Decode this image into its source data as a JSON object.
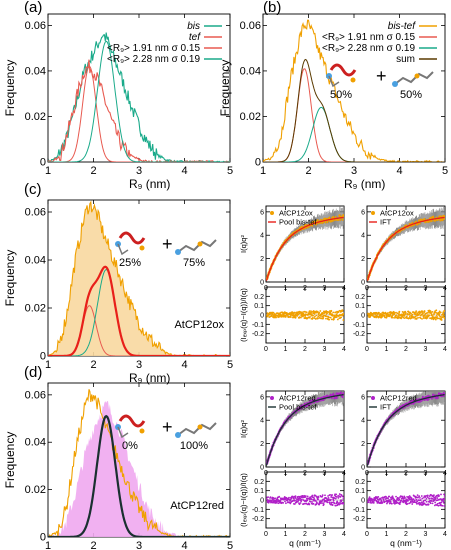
{
  "figure": {
    "panel_labels": [
      "(a)",
      "(b)",
      "(c)",
      "(d)"
    ]
  },
  "colors": {
    "bis": "#1aaa8a",
    "tef": "#e85a50",
    "sum": "#3a2a00",
    "bistef": "#f0a000",
    "ox": "#f0a000",
    "ox_fill": "#f8d8a0",
    "ox_fit": "#e8201a",
    "red": "#b020c8",
    "red_fill": "#f0a8f0",
    "red_fit": "#1a3030",
    "sum_b": "#5a3a00"
  },
  "chart_data": [
    {
      "id": "a",
      "type": "line",
      "xlabel": "R₉ (nm)",
      "ylabel": "Frequency",
      "xlim": [
        1,
        5
      ],
      "ylim": [
        0,
        0.065
      ],
      "xticks": [
        1,
        2,
        3,
        4,
        5
      ],
      "yticks": [
        0,
        0.02,
        0.04,
        0.06
      ],
      "ytick_labels": [
        "0",
        "0.02",
        "0.04",
        "0.06"
      ],
      "legend": [
        {
          "label": "bis",
          "italic": true,
          "color": "bis"
        },
        {
          "label": "tef",
          "italic": true,
          "color": "tef"
        },
        {
          "label": "<R₉> 1.91 nm σ 0.15",
          "color": "tef"
        },
        {
          "label": "<R₉> 2.28 nm σ 0.19",
          "color": "bis"
        }
      ],
      "series": [
        {
          "name": "bis",
          "color": "bis",
          "noisy": true,
          "x": [
            1.2,
            1.4,
            1.6,
            1.8,
            2.0,
            2.1,
            2.2,
            2.3,
            2.4,
            2.6,
            2.8,
            3.0,
            3.2,
            3.4,
            3.6
          ],
          "y": [
            0.002,
            0.01,
            0.024,
            0.04,
            0.048,
            0.052,
            0.056,
            0.054,
            0.048,
            0.038,
            0.026,
            0.016,
            0.008,
            0.003,
            0.001
          ]
        },
        {
          "name": "tef",
          "color": "tef",
          "noisy": true,
          "x": [
            1.3,
            1.5,
            1.7,
            1.8,
            1.9,
            2.0,
            2.1,
            2.2,
            2.4,
            2.6,
            2.8,
            3.0
          ],
          "y": [
            0.004,
            0.018,
            0.034,
            0.04,
            0.042,
            0.04,
            0.036,
            0.03,
            0.018,
            0.008,
            0.003,
            0.001
          ]
        },
        {
          "name": "fit_tef",
          "color": "tef",
          "gauss": {
            "mu": 1.91,
            "sigma": 0.15,
            "amp": 0.042
          }
        },
        {
          "name": "fit_bis",
          "color": "bis",
          "gauss": {
            "mu": 2.28,
            "sigma": 0.19,
            "amp": 0.053
          }
        }
      ]
    },
    {
      "id": "b",
      "type": "line",
      "xlabel": "R₉ (nm)",
      "ylabel": "Frequency",
      "xlim": [
        1,
        5
      ],
      "ylim": [
        0,
        0.065
      ],
      "xticks": [
        1,
        2,
        3,
        4,
        5
      ],
      "yticks": [
        0,
        0.02,
        0.04,
        0.06
      ],
      "ytick_labels": [
        "0",
        "0.02",
        "0.04",
        "0.06"
      ],
      "legend": [
        {
          "label": "bis-tef",
          "italic": true,
          "color": "bistef"
        },
        {
          "label": "<R₉> 1.91 nm σ 0.15",
          "color": "tef"
        },
        {
          "label": "<R₉> 2.28 nm σ 0.19",
          "color": "bis"
        },
        {
          "label": "sum",
          "color": "sum_b"
        }
      ],
      "annotations": [
        "50%",
        "50%"
      ],
      "series": [
        {
          "name": "bis-tef",
          "color": "bistef",
          "noisy": true,
          "x": [
            1.2,
            1.4,
            1.6,
            1.8,
            1.9,
            2.0,
            2.1,
            2.2,
            2.4,
            2.6,
            2.8,
            3.0,
            3.2,
            3.4,
            3.6,
            3.8
          ],
          "y": [
            0.002,
            0.012,
            0.036,
            0.054,
            0.06,
            0.06,
            0.056,
            0.05,
            0.04,
            0.03,
            0.02,
            0.012,
            0.006,
            0.003,
            0.001,
            0.0
          ]
        },
        {
          "name": "fit_tef",
          "color": "tef",
          "gauss": {
            "mu": 1.91,
            "sigma": 0.15,
            "amp": 0.041
          }
        },
        {
          "name": "fit_bis",
          "color": "bis",
          "gauss": {
            "mu": 2.28,
            "sigma": 0.19,
            "amp": 0.024
          }
        },
        {
          "name": "sum",
          "color": "sum_b",
          "sum": true
        }
      ]
    },
    {
      "id": "c",
      "type": "area",
      "xlabel": "R₉ (nm)",
      "ylabel": "Frequency",
      "xlim": [
        1,
        5
      ],
      "ylim": [
        0,
        0.065
      ],
      "xticks": [
        1,
        2,
        3,
        4,
        5
      ],
      "yticks": [
        0,
        0.02,
        0.04,
        0.06
      ],
      "ytick_labels": [
        "0",
        "0.02",
        "0.04",
        "0.06"
      ],
      "label": "AtCP12ox",
      "annotations": [
        "25%",
        "75%"
      ],
      "series": [
        {
          "name": "AtCP12ox",
          "color": "ox",
          "fill": "ox_fill",
          "noisy": true,
          "x": [
            1.2,
            1.4,
            1.6,
            1.8,
            1.9,
            2.0,
            2.1,
            2.2,
            2.4,
            2.6,
            2.8,
            3.0,
            3.2,
            3.4,
            3.6,
            3.8
          ],
          "y": [
            0.002,
            0.016,
            0.04,
            0.058,
            0.063,
            0.062,
            0.058,
            0.052,
            0.042,
            0.032,
            0.022,
            0.014,
            0.008,
            0.004,
            0.001,
            0.0
          ]
        },
        {
          "name": "fit_tef",
          "color": "tef",
          "gauss": {
            "mu": 1.91,
            "sigma": 0.15,
            "amp": 0.021
          }
        },
        {
          "name": "fit_bis",
          "color": "bis",
          "gauss": {
            "mu": 2.28,
            "sigma": 0.19,
            "amp": 0.036
          }
        },
        {
          "name": "sum",
          "color": "ox_fit",
          "sum": true,
          "width": 2.2
        }
      ]
    },
    {
      "id": "d",
      "type": "area",
      "xlabel": "R₉ (nm)",
      "ylabel": "Frequency",
      "xlim": [
        1,
        5
      ],
      "ylim": [
        0,
        0.065
      ],
      "xticks": [
        1,
        2,
        3,
        4,
        5
      ],
      "yticks": [
        0,
        0.02,
        0.04,
        0.06
      ],
      "ytick_labels": [
        "0",
        "0.02",
        "0.04",
        "0.06"
      ],
      "label": "AtCP12red",
      "annotations": [
        "0%",
        "100%"
      ],
      "series": [
        {
          "name": "AtCP12red",
          "color": "red",
          "fill": "red_fill",
          "noisy": true,
          "fill_only": true,
          "x": [
            1.2,
            1.4,
            1.6,
            1.8,
            2.0,
            2.2,
            2.3,
            2.4,
            2.6,
            2.8,
            3.0,
            3.2,
            3.4,
            3.6,
            3.8,
            4.0
          ],
          "y": [
            0.001,
            0.006,
            0.018,
            0.034,
            0.046,
            0.054,
            0.056,
            0.052,
            0.044,
            0.032,
            0.022,
            0.012,
            0.006,
            0.002,
            0.001,
            0.0
          ]
        },
        {
          "name": "bis-tef",
          "color": "bistef",
          "noisy": true,
          "x": [
            1.2,
            1.4,
            1.6,
            1.8,
            1.9,
            2.0,
            2.1,
            2.2,
            2.4,
            2.6,
            2.8,
            3.0,
            3.2,
            3.4,
            3.6,
            3.8
          ],
          "y": [
            0.002,
            0.012,
            0.036,
            0.054,
            0.06,
            0.06,
            0.056,
            0.05,
            0.04,
            0.03,
            0.02,
            0.012,
            0.006,
            0.003,
            0.001,
            0.0
          ]
        },
        {
          "name": "fit_tef",
          "color": "tef",
          "gauss": {
            "mu": 1.91,
            "sigma": 0.15,
            "amp": 0.0
          }
        },
        {
          "name": "sum",
          "color": "red_fit",
          "gauss": {
            "mu": 2.28,
            "sigma": 0.2,
            "amp": 0.051
          },
          "width": 2.2
        }
      ]
    },
    {
      "id": "c_saxs_pool",
      "type": "scatter",
      "ylabel": "I(q)q²",
      "xlim": [
        0,
        4
      ],
      "ylim": [
        0,
        6.5
      ],
      "xticks": [
        0,
        1,
        2,
        3,
        4
      ],
      "yticks": [
        0,
        2,
        4,
        6
      ],
      "legend": [
        {
          "label": "AtCP12ox",
          "color": "ox",
          "marker": "star"
        },
        {
          "label": "Pool bis-tef",
          "color": "ox_fit"
        }
      ],
      "data_color": "ox",
      "fit_color": "ox_fit",
      "plateau": 5.0
    },
    {
      "id": "c_saxs_ift",
      "type": "scatter",
      "xlim": [
        0,
        4
      ],
      "ylim": [
        0,
        6.5
      ],
      "xticks": [
        0,
        1,
        2,
        3,
        4
      ],
      "yticks": [
        0,
        2,
        4,
        6
      ],
      "legend": [
        {
          "label": "AtCP12ox",
          "color": "ox",
          "marker": "star"
        },
        {
          "label": "IFT",
          "color": "ox_fit"
        }
      ],
      "data_color": "ox",
      "fit_color": "ox_fit",
      "plateau": 5.0
    },
    {
      "id": "c_res_pool",
      "type": "scatter",
      "ylabel": "(Iₑₓₚ(q)−I(q))/I(q)",
      "xlim": [
        0,
        4
      ],
      "ylim": [
        -0.3,
        0.3
      ],
      "xticks": [
        0,
        1,
        2,
        3,
        4
      ],
      "yticks": [
        -0.2,
        -0.1,
        0,
        0.1,
        0.2
      ],
      "ytick_labels": [
        "-0.2",
        "-0.1",
        "0",
        "0.1",
        "0.2"
      ],
      "data_color": "ox",
      "spread": 0.05
    },
    {
      "id": "c_res_ift",
      "type": "scatter",
      "xlim": [
        0,
        4
      ],
      "ylim": [
        -0.3,
        0.3
      ],
      "xticks": [
        0,
        1,
        2,
        3,
        4
      ],
      "yticks": [
        -0.2,
        -0.1,
        0,
        0.1,
        0.2
      ],
      "ytick_labels": [
        "-0.2",
        "-0.1",
        "0",
        "0.1",
        "0.2"
      ],
      "data_color": "ox",
      "spread": 0.05
    },
    {
      "id": "d_saxs_pool",
      "type": "scatter",
      "ylabel": "I(q)q²",
      "xlim": [
        0,
        4
      ],
      "ylim": [
        0,
        6.5
      ],
      "xticks": [
        0,
        1,
        2,
        3,
        4
      ],
      "yticks": [
        0,
        2,
        4,
        6
      ],
      "legend": [
        {
          "label": "AtCP12red",
          "color": "red",
          "marker": "star"
        },
        {
          "label": "Pool bis-tef",
          "color": "red_fit"
        }
      ],
      "data_color": "red",
      "fit_color": "red_fit",
      "plateau": 5.6
    },
    {
      "id": "d_saxs_ift",
      "type": "scatter",
      "xlim": [
        0,
        4
      ],
      "ylim": [
        0,
        6.5
      ],
      "xticks": [
        0,
        1,
        2,
        3,
        4
      ],
      "yticks": [
        0,
        2,
        4,
        6
      ],
      "legend": [
        {
          "label": "AtCP12red",
          "color": "red",
          "marker": "star"
        },
        {
          "label": "IFT",
          "color": "red_fit"
        }
      ],
      "data_color": "red",
      "fit_color": "red_fit",
      "plateau": 5.6
    },
    {
      "id": "d_res_pool",
      "type": "scatter",
      "ylabel": "(Iₑₓₚ(q)−I(q))/I(q)",
      "xlabel": "q (nm⁻¹)",
      "xlim": [
        0,
        4
      ],
      "ylim": [
        -0.3,
        0.3
      ],
      "xticks": [
        0,
        1,
        2,
        3,
        4
      ],
      "yticks": [
        -0.2,
        -0.1,
        0,
        0.1,
        0.2
      ],
      "ytick_labels": [
        "-0.2",
        "-0.1",
        "0",
        "0.1",
        "0.2"
      ],
      "data_color": "red",
      "spread": 0.06
    },
    {
      "id": "d_res_ift",
      "type": "scatter",
      "xlabel": "q (nm⁻¹)",
      "xlim": [
        0,
        4
      ],
      "ylim": [
        -0.3,
        0.3
      ],
      "xticks": [
        0,
        1,
        2,
        3,
        4
      ],
      "yticks": [
        -0.2,
        -0.1,
        0,
        0.1,
        0.2
      ],
      "ytick_labels": [
        "-0.2",
        "-0.1",
        "0",
        "0.1",
        "0.2"
      ],
      "data_color": "red",
      "spread": 0.06
    }
  ]
}
